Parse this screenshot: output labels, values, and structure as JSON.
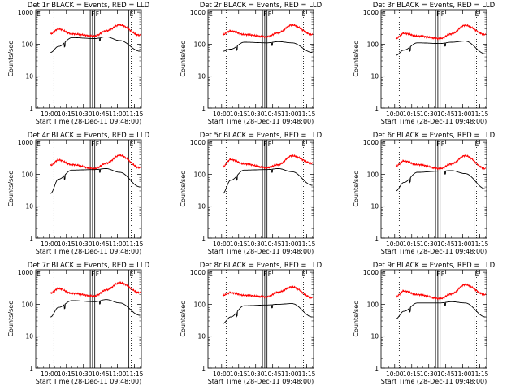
{
  "chart_data": {
    "type": "line",
    "x_ticks": [
      "10:00",
      "10:15",
      "10:30",
      "10:45",
      "11:00",
      "11:15"
    ],
    "x_range": [
      "09:48",
      "11:21"
    ],
    "y_ticks": [
      "1",
      "10",
      "100",
      "1000"
    ],
    "y_range": [
      1,
      1200
    ],
    "y_scale": "log",
    "xlabel": "Start Time (28-Dec-11 09:48:00)",
    "ylabel": "Counts/sec",
    "grid": false,
    "vertical_markers": [
      {
        "time": "10:04",
        "style": "dotted"
      },
      {
        "time": "10:36",
        "style": "solid",
        "label": "F"
      },
      {
        "time": "10:38",
        "style": "solid",
        "label": ""
      },
      {
        "time": "10:40",
        "style": "solid",
        "label": "F"
      },
      {
        "time": "11:10",
        "style": "solid",
        "label": "E"
      },
      {
        "time": "11:12",
        "style": "dotted"
      }
    ],
    "corner_label": "E",
    "series_colors": {
      "events": "#000000",
      "lld": "#ff0000"
    },
    "panels": [
      {
        "title": "Det 1r BLACK = Events, RED = LLD",
        "series": [
          {
            "values_at": [
              "10:01",
              "10:08",
              "10:20",
              "10:40",
              "10:50",
              "11:02",
              "11:20"
            ],
            "lld": [
              210,
              300,
              210,
              180,
              260,
              400,
              190
            ],
            "events": [
              55,
              85,
              160,
              150,
              170,
              130,
              60
            ]
          }
        ]
      },
      {
        "title": "Det 2r BLACK = Events, RED = LLD",
        "series": [
          {
            "values_at": [
              "10:01",
              "10:08",
              "10:20",
              "10:40",
              "10:50",
              "11:02",
              "11:20"
            ],
            "lld": [
              200,
              260,
              200,
              170,
              230,
              400,
              200
            ],
            "events": [
              60,
              70,
              115,
              110,
              120,
              110,
              55
            ]
          }
        ]
      },
      {
        "title": "Det 3r BLACK = Events, RED = LLD",
        "series": [
          {
            "values_at": [
              "10:01",
              "10:08",
              "10:20",
              "10:40",
              "10:50",
              "11:02",
              "11:20"
            ],
            "lld": [
              150,
              220,
              180,
              150,
              210,
              390,
              200
            ],
            "events": [
              45,
              65,
              110,
              105,
              115,
              125,
              50
            ]
          }
        ]
      },
      {
        "title": "Det 4r BLACK = Events, RED = LLD",
        "series": [
          {
            "values_at": [
              "10:01",
              "10:08",
              "10:20",
              "10:40",
              "10:50",
              "11:02",
              "11:20"
            ],
            "lld": [
              190,
              280,
              200,
              150,
              220,
              390,
              160
            ],
            "events": [
              25,
              70,
              135,
              140,
              150,
              115,
              40
            ]
          }
        ]
      },
      {
        "title": "Det 5r BLACK = Events, RED = LLD",
        "series": [
          {
            "values_at": [
              "10:01",
              "10:08",
              "10:20",
              "10:40",
              "10:50",
              "11:02",
              "11:20"
            ],
            "lld": [
              170,
              290,
              210,
              160,
              200,
              380,
              220
            ],
            "events": [
              25,
              65,
              135,
              140,
              150,
              120,
              45
            ]
          }
        ]
      },
      {
        "title": "Det 6r BLACK = Events, RED = LLD",
        "series": [
          {
            "values_at": [
              "10:01",
              "10:08",
              "10:20",
              "10:40",
              "10:50",
              "11:02",
              "11:20"
            ],
            "lld": [
              180,
              260,
              200,
              150,
              210,
              380,
              150
            ],
            "events": [
              30,
              55,
              115,
              125,
              130,
              105,
              35
            ]
          }
        ]
      },
      {
        "title": "Det 7r BLACK = Events, RED = LLD",
        "series": [
          {
            "values_at": [
              "10:01",
              "10:08",
              "10:20",
              "10:40",
              "10:50",
              "11:02",
              "11:20"
            ],
            "lld": [
              220,
              310,
              220,
              180,
              280,
              470,
              230
            ],
            "events": [
              40,
              80,
              130,
              120,
              140,
              110,
              45
            ]
          }
        ]
      },
      {
        "title": "Det 8r BLACK = Events, RED = LLD",
        "series": [
          {
            "values_at": [
              "10:01",
              "10:08",
              "10:20",
              "10:40",
              "10:50",
              "11:02",
              "11:20"
            ],
            "lld": [
              190,
              230,
              190,
              170,
              240,
              350,
              160
            ],
            "events": [
              25,
              40,
              90,
              95,
              100,
              105,
              40
            ]
          }
        ]
      },
      {
        "title": "Det 9r BLACK = Events, RED = LLD",
        "series": [
          {
            "values_at": [
              "10:01",
              "10:08",
              "10:20",
              "10:40",
              "10:50",
              "11:02",
              "11:20"
            ],
            "lld": [
              170,
              260,
              200,
              150,
              210,
              410,
              200
            ],
            "events": [
              35,
              60,
              110,
              110,
              120,
              110,
              40
            ]
          }
        ]
      }
    ]
  }
}
